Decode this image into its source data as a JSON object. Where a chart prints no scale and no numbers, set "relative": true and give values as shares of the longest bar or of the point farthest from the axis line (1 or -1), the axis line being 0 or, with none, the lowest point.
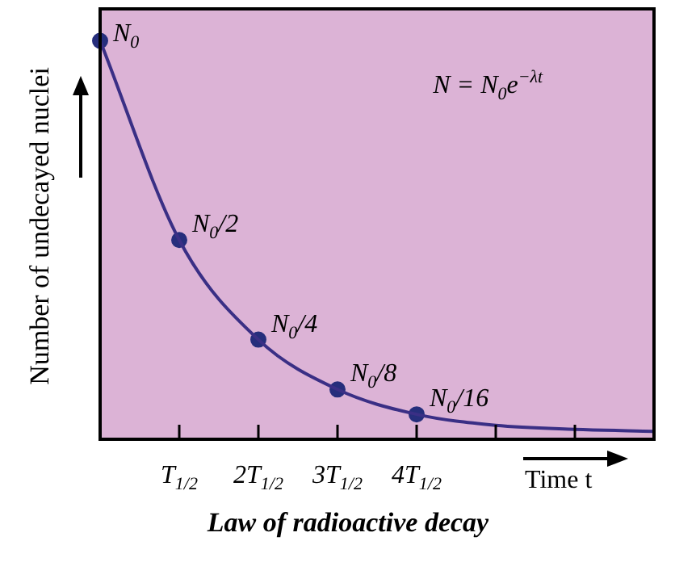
{
  "chart_data": {
    "type": "line",
    "title": "Law of radioactive decay",
    "xlabel": "Time t",
    "ylabel": "Number of undecayed nuclei",
    "annotations": [
      "N$_{0}$",
      "N = N$_{0}$e$^{−λt}$",
      {
        "text": "N$_{0}$/2",
        "x": "T$_{1/2}$",
        "y": 0.5
      },
      {
        "text": "N$_{0}$/4",
        "x": "2T$_{1/2}$",
        "y": 0.25
      },
      {
        "text": "N$_{0}$/8",
        "x": "3T$_{1/2}$",
        "y": 0.125
      },
      {
        "text": "N$_{0}$/16",
        "x": "4T$_{1/2}$",
        "y": 0.0625
      }
    ],
    "relative": true,
    "categories": [
      null,
      "T$_{1/2}$",
      "2T$_{1/2}$",
      "3T$_{1/2}$",
      "4T$_{1/2}$",
      null,
      null,
      null
    ],
    "grid": false,
    "legend": false,
    "tick_labels": "x",
    "line_style": "solid",
    "series": [
      {
        "marker": "none",
        "color": "#3a2f85",
        "values": [
          1,
          0.5,
          0.25,
          0.125,
          0.0625,
          0.035,
          0.025,
          0.02
        ]
      },
      {
        "type": "scatter",
        "marker": "circle",
        "color": "#262e7c",
        "values": [
          1,
          0.5,
          0.25,
          0.125,
          0.0625,
          null,
          null,
          null
        ]
      }
    ]
  }
}
